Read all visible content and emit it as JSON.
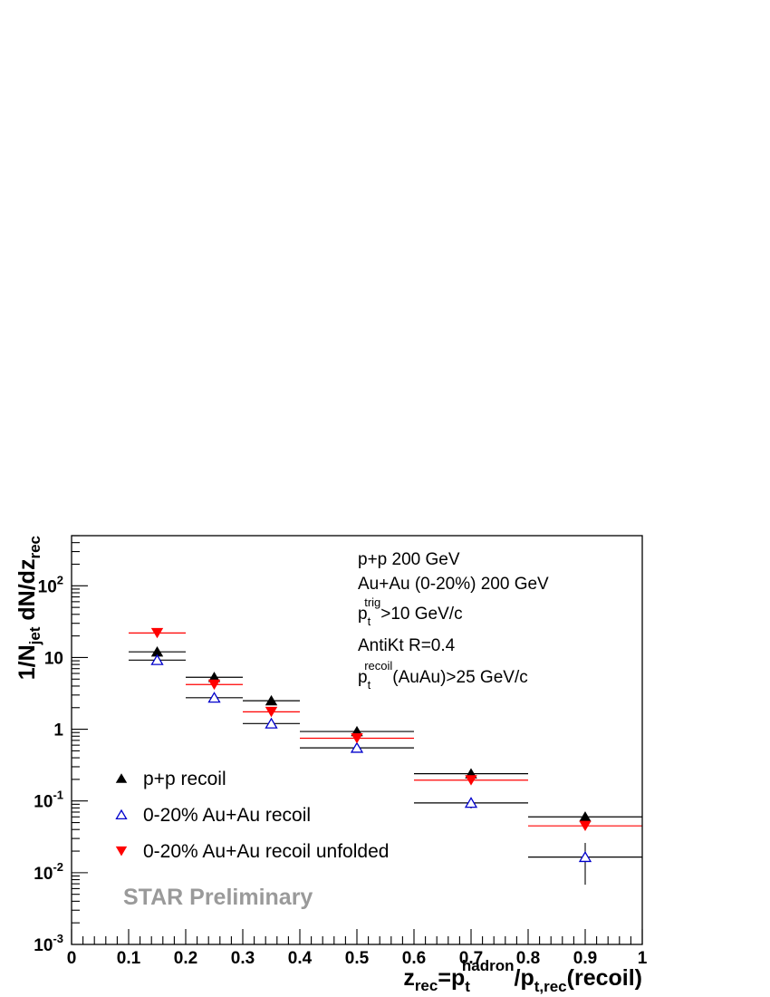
{
  "chart_data": {
    "type": "scatter",
    "title": "",
    "x_axis": {
      "label_parts": [
        "z",
        "rec",
        "=p",
        "t",
        "hadron",
        "/p",
        "t,rec",
        "(recoil)"
      ],
      "range": [
        0,
        1
      ],
      "tick_labels": [
        "0",
        "0.1",
        "0.2",
        "0.3",
        "0.4",
        "0.5",
        "0.6",
        "0.7",
        "0.8",
        "0.9",
        "1"
      ]
    },
    "y_axis": {
      "label_parts": [
        "1/N",
        "jet",
        " dN/dz",
        "rec"
      ],
      "scale": "log",
      "range": [
        0.001,
        500
      ],
      "tick_labels": [
        {
          "mantissa": "10",
          "exp": "-3"
        },
        {
          "mantissa": "10",
          "exp": "-2"
        },
        {
          "mantissa": "10",
          "exp": "-1"
        },
        {
          "mantissa": "1",
          "exp": ""
        },
        {
          "mantissa": "10",
          "exp": ""
        },
        {
          "mantissa": "10",
          "exp": "2"
        }
      ]
    },
    "grid": false,
    "series": [
      {
        "name": "p+p recoil",
        "marker": "filled-triangle-up",
        "color": "#000000",
        "bin_line_color": "#000000",
        "points": [
          {
            "x": 0.15,
            "xlow": 0.1,
            "xhigh": 0.2,
            "y": 12.0,
            "ylow": 12.0,
            "yhigh": 12.0
          },
          {
            "x": 0.25,
            "xlow": 0.2,
            "xhigh": 0.3,
            "y": 5.3,
            "ylow": 5.3,
            "yhigh": 5.3
          },
          {
            "x": 0.35,
            "xlow": 0.3,
            "xhigh": 0.4,
            "y": 2.5,
            "ylow": 2.5,
            "yhigh": 2.5
          },
          {
            "x": 0.5,
            "xlow": 0.4,
            "xhigh": 0.6,
            "y": 0.93,
            "ylow": 0.93,
            "yhigh": 0.93
          },
          {
            "x": 0.7,
            "xlow": 0.6,
            "xhigh": 0.8,
            "y": 0.24,
            "ylow": 0.24,
            "yhigh": 0.24
          },
          {
            "x": 0.9,
            "xlow": 0.8,
            "xhigh": 1.0,
            "y": 0.06,
            "ylow": 0.06,
            "yhigh": 0.06
          }
        ]
      },
      {
        "name": "0-20% Au+Au recoil",
        "marker": "open-triangle-up",
        "color": "#0000cc",
        "bin_line_color": "#000000",
        "points": [
          {
            "x": 0.15,
            "xlow": 0.1,
            "xhigh": 0.2,
            "y": 9.2,
            "ylow": 9.2,
            "yhigh": 9.2
          },
          {
            "x": 0.25,
            "xlow": 0.2,
            "xhigh": 0.3,
            "y": 2.75,
            "ylow": 2.75,
            "yhigh": 2.75
          },
          {
            "x": 0.35,
            "xlow": 0.3,
            "xhigh": 0.4,
            "y": 1.2,
            "ylow": 1.2,
            "yhigh": 1.2
          },
          {
            "x": 0.5,
            "xlow": 0.4,
            "xhigh": 0.6,
            "y": 0.55,
            "ylow": 0.55,
            "yhigh": 0.55
          },
          {
            "x": 0.7,
            "xlow": 0.6,
            "xhigh": 0.8,
            "y": 0.094,
            "ylow": 0.079,
            "yhigh": 0.11
          },
          {
            "x": 0.9,
            "xlow": 0.8,
            "xhigh": 1.0,
            "y": 0.0165,
            "ylow": 0.0068,
            "yhigh": 0.026
          }
        ]
      },
      {
        "name": "0-20% Au+Au recoil unfolded",
        "marker": "filled-triangle-down",
        "color": "#ff0000",
        "bin_line_color": "#ff0000",
        "points": [
          {
            "x": 0.15,
            "xlow": 0.1,
            "xhigh": 0.2,
            "y": 22.0,
            "ylow": 22.0,
            "yhigh": 22.0
          },
          {
            "x": 0.25,
            "xlow": 0.2,
            "xhigh": 0.3,
            "y": 4.2,
            "ylow": 4.2,
            "yhigh": 4.2
          },
          {
            "x": 0.35,
            "xlow": 0.3,
            "xhigh": 0.4,
            "y": 1.75,
            "ylow": 1.75,
            "yhigh": 1.75
          },
          {
            "x": 0.5,
            "xlow": 0.4,
            "xhigh": 0.6,
            "y": 0.75,
            "ylow": 0.75,
            "yhigh": 0.75
          },
          {
            "x": 0.7,
            "xlow": 0.6,
            "xhigh": 0.8,
            "y": 0.195,
            "ylow": 0.195,
            "yhigh": 0.195
          },
          {
            "x": 0.9,
            "xlow": 0.8,
            "xhigh": 1.0,
            "y": 0.045,
            "ylow": 0.045,
            "yhigh": 0.045
          }
        ]
      }
    ],
    "annotations": [
      {
        "parts": [
          {
            "t": "p+p 200 GeV"
          }
        ]
      },
      {
        "parts": [
          {
            "t": "Au+Au (0-20%) 200 GeV"
          }
        ]
      },
      {
        "parts": [
          {
            "t": "p"
          },
          {
            "t": "t",
            "sub": true
          },
          {
            "t": "trig",
            "sup": true
          },
          {
            "t": ">10 GeV/c"
          }
        ]
      },
      {
        "parts": [
          {
            "t": "AntiKt R=0.4"
          }
        ]
      },
      {
        "parts": [
          {
            "t": "p"
          },
          {
            "t": "t",
            "sub": true
          },
          {
            "t": "recoil",
            "sup": true
          },
          {
            "t": "(AuAu)>25 GeV/c"
          }
        ]
      }
    ],
    "watermark": "STAR Preliminary",
    "legend_position": "bottom-left"
  }
}
